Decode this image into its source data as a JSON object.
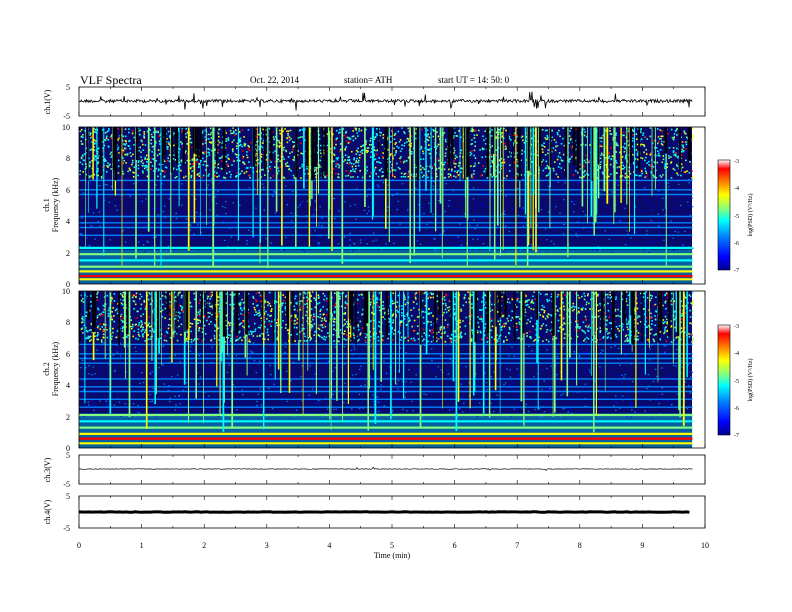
{
  "header": {
    "title": "VLF  Spectra",
    "date": "Oct. 22, 2014",
    "station": "station= ATH",
    "start": "start  UT  =    14: 50: 0"
  },
  "colors": {
    "background": "#ffffff",
    "spectrogram_base": "#0a0a6e",
    "trace": "#000000"
  },
  "colormap": [
    "#00008f",
    "#0000ff",
    "#0080ff",
    "#00ffff",
    "#80ff80",
    "#ffff00",
    "#ff8000",
    "#ff0000",
    "#ffffff"
  ],
  "chart_data": [
    {
      "type": "line",
      "name": "ch1-waveform",
      "ylabel": "ch.1(V)",
      "yticks": [
        "5",
        "-5"
      ],
      "ylim": [
        -5,
        5
      ],
      "xlim": [
        0,
        10
      ],
      "baseline": 0
    },
    {
      "type": "heatmap",
      "name": "ch1-spectrogram",
      "ylabel": "Frequency  (kHz)",
      "channel": "ch.1",
      "yticks": [
        "0",
        "2",
        "4",
        "6",
        "8",
        "10"
      ],
      "ylim": [
        0,
        10
      ],
      "xlim": [
        0,
        9.8
      ],
      "colorbar": {
        "label": "log(PSD) (V²/Hz)",
        "ticks": [
          "-3",
          "-4",
          "-5",
          "-6",
          "-7"
        ],
        "range": [
          -7,
          -3
        ]
      },
      "persistent_lines_khz": [
        0.3,
        0.5,
        0.8,
        1.1,
        1.5,
        1.9,
        2.3,
        3.1,
        3.6,
        3.9,
        4.3,
        5.7,
        6.0,
        6.6
      ]
    },
    {
      "type": "heatmap",
      "name": "ch2-spectrogram",
      "ylabel": "Frequency  (kHz)",
      "channel": "ch.2",
      "yticks": [
        "0",
        "2",
        "4",
        "6",
        "8",
        "10"
      ],
      "ylim": [
        0,
        10
      ],
      "xlim": [
        0,
        9.8
      ],
      "colorbar": {
        "label": "log(PSD) (V²/Hz)",
        "ticks": [
          "-3",
          "-4",
          "-5",
          "-6",
          "-7"
        ],
        "range": [
          -7,
          -3
        ]
      },
      "persistent_lines_khz": [
        0.3,
        0.6,
        0.9,
        1.3,
        1.7,
        2.1,
        2.6,
        3.1,
        3.6,
        3.9,
        4.4,
        5.4,
        5.7,
        6.0,
        6.6
      ]
    },
    {
      "type": "line",
      "name": "ch3-waveform",
      "ylabel": "ch.3(V)",
      "yticks": [
        "5",
        "-5"
      ],
      "ylim": [
        -5,
        5
      ],
      "xlim": [
        0,
        10
      ],
      "baseline": 0
    },
    {
      "type": "line",
      "name": "ch4-waveform",
      "ylabel": "ch.4(V)",
      "yticks": [
        "5",
        "-5"
      ],
      "ylim": [
        -5,
        5
      ],
      "xlim": [
        0,
        10
      ],
      "baseline": 0
    }
  ],
  "x_axis": {
    "label": "Time  (min)",
    "ticks": [
      "0",
      "1",
      "2",
      "3",
      "4",
      "5",
      "6",
      "7",
      "8",
      "9",
      "10"
    ],
    "range": [
      0,
      10
    ]
  }
}
